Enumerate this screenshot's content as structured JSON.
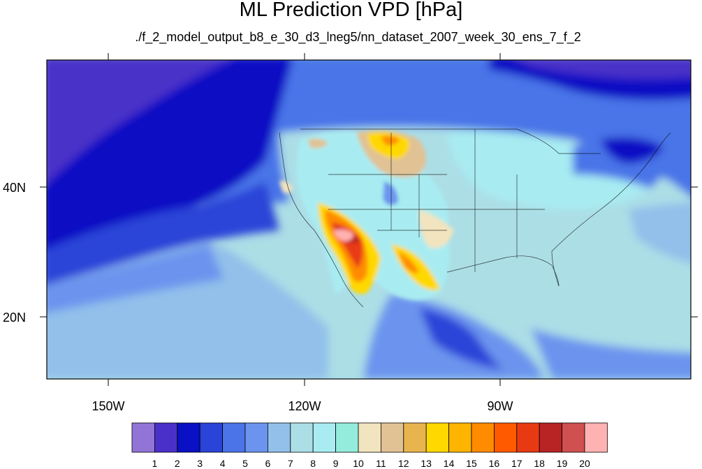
{
  "title": "ML Prediction VPD [hPa]",
  "subtitle": "./f_2_model_output_b8_e_30_d3_lneg5/nn_dataset_2007_week_30_ens_7_f_2",
  "lat_labels": [
    "40N",
    "20N"
  ],
  "lon_labels": [
    "150W",
    "120W",
    "90W"
  ],
  "colorbar": {
    "labels": [
      "1",
      "2",
      "3",
      "4",
      "5",
      "6",
      "7",
      "8",
      "9",
      "10",
      "11",
      "12",
      "13",
      "14",
      "15",
      "16",
      "17",
      "18",
      "19",
      "20"
    ],
    "colors": [
      "#9274d6",
      "#4a30c8",
      "#0a10c4",
      "#2a44d8",
      "#4a74e8",
      "#6c94ee",
      "#92c0ea",
      "#acdee6",
      "#a8ecf2",
      "#94ecdc",
      "#f2e4be",
      "#e0c294",
      "#e8b44e",
      "#ffd800",
      "#ffb400",
      "#ff8c00",
      "#ff5a00",
      "#e83a12",
      "#b82424",
      "#d05050",
      "#ffb2b2"
    ]
  },
  "map_colors": {
    "ocean_deep": "#4a30c8",
    "ocean_mid": "#0a10c4",
    "ocean_blue": "#2a44d8",
    "ocean_light": "#4a74e8",
    "ocean_pale": "#6c94ee",
    "lightblue": "#92c0ea",
    "pale": "#acdee6",
    "cyan": "#a8ecf2",
    "tan": "#e0c294",
    "beige": "#f2e4be",
    "yellow": "#ffd800",
    "orange": "#ff8c00",
    "red": "#e83a12",
    "darkred": "#b82424",
    "pink": "#ffb2b2"
  }
}
